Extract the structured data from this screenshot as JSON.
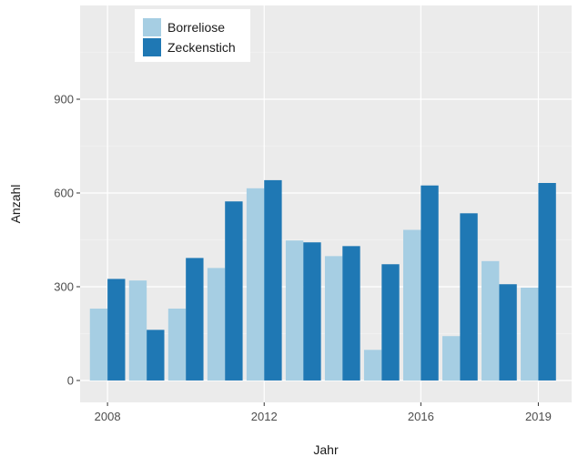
{
  "chart_data": {
    "type": "bar",
    "xlabel": "Jahr",
    "ylabel": "Anzahl",
    "ylim": [
      -70,
      1200
    ],
    "yticks": [
      0,
      300,
      600,
      900
    ],
    "xlim": [
      2007.3,
      2019.85
    ],
    "xticks": [
      2008,
      2012,
      2016,
      2019
    ],
    "grid": true,
    "legend": "top-left",
    "x": [
      2008,
      2009,
      2010,
      2011,
      2012,
      2013,
      2014,
      2015,
      2016,
      2017,
      2018,
      2019
    ],
    "series": [
      {
        "name": "Borreliose",
        "color": "#a6cee3",
        "values": [
          230,
          320,
          230,
          360,
          615,
          448,
          398,
          98,
          482,
          142,
          382,
          297
        ]
      },
      {
        "name": "Zeckenstich",
        "color": "#1f78b4",
        "values": [
          325,
          162,
          392,
          573,
          641,
          442,
          430,
          372,
          624,
          535,
          308,
          632
        ]
      }
    ]
  }
}
